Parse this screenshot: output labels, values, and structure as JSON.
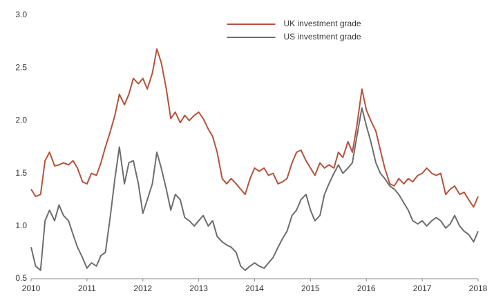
{
  "chart_data": {
    "type": "line",
    "x": [
      2010.0,
      2010.08,
      2010.17,
      2010.25,
      2010.33,
      2010.42,
      2010.5,
      2010.58,
      2010.67,
      2010.75,
      2010.83,
      2010.92,
      2011.0,
      2011.08,
      2011.17,
      2011.25,
      2011.33,
      2011.42,
      2011.5,
      2011.58,
      2011.67,
      2011.75,
      2011.83,
      2011.92,
      2012.0,
      2012.08,
      2012.17,
      2012.25,
      2012.33,
      2012.42,
      2012.5,
      2012.58,
      2012.67,
      2012.75,
      2012.83,
      2012.92,
      2013.0,
      2013.08,
      2013.17,
      2013.25,
      2013.33,
      2013.42,
      2013.5,
      2013.58,
      2013.67,
      2013.75,
      2013.83,
      2013.92,
      2014.0,
      2014.08,
      2014.17,
      2014.25,
      2014.33,
      2014.42,
      2014.5,
      2014.58,
      2014.67,
      2014.75,
      2014.83,
      2014.92,
      2015.0,
      2015.08,
      2015.17,
      2015.25,
      2015.33,
      2015.42,
      2015.5,
      2015.58,
      2015.67,
      2015.75,
      2015.83,
      2015.92,
      2016.0,
      2016.08,
      2016.17,
      2016.25,
      2016.33,
      2016.42,
      2016.5,
      2016.58,
      2016.67,
      2016.75,
      2016.83,
      2016.92,
      2017.0,
      2017.08,
      2017.17,
      2017.25,
      2017.33,
      2017.42,
      2017.5,
      2017.58,
      2017.67,
      2017.75,
      2017.83,
      2017.92,
      2018.0
    ],
    "series": [
      {
        "name": "UK investment grade",
        "color": "#b5523b",
        "values": [
          1.35,
          1.28,
          1.3,
          1.62,
          1.7,
          1.57,
          1.58,
          1.6,
          1.58,
          1.62,
          1.55,
          1.42,
          1.4,
          1.5,
          1.48,
          1.6,
          1.75,
          1.9,
          2.05,
          2.25,
          2.15,
          2.25,
          2.4,
          2.35,
          2.4,
          2.3,
          2.45,
          2.68,
          2.55,
          2.3,
          2.02,
          2.08,
          1.98,
          2.05,
          2.0,
          2.05,
          2.08,
          2.02,
          1.92,
          1.85,
          1.7,
          1.45,
          1.4,
          1.45,
          1.4,
          1.35,
          1.3,
          1.45,
          1.55,
          1.52,
          1.55,
          1.48,
          1.5,
          1.4,
          1.42,
          1.45,
          1.6,
          1.7,
          1.72,
          1.62,
          1.55,
          1.48,
          1.6,
          1.55,
          1.58,
          1.55,
          1.7,
          1.65,
          1.8,
          1.7,
          1.95,
          2.3,
          2.1,
          2.0,
          1.9,
          1.72,
          1.55,
          1.4,
          1.38,
          1.45,
          1.4,
          1.45,
          1.42,
          1.48,
          1.5,
          1.55,
          1.5,
          1.48,
          1.5,
          1.3,
          1.35,
          1.38,
          1.3,
          1.32,
          1.25,
          1.18,
          1.28
        ]
      },
      {
        "name": "US investment grade",
        "color": "#6d6d6d",
        "values": [
          0.8,
          0.62,
          0.58,
          1.05,
          1.15,
          1.05,
          1.2,
          1.1,
          1.05,
          0.92,
          0.8,
          0.7,
          0.6,
          0.65,
          0.62,
          0.72,
          0.75,
          1.1,
          1.45,
          1.75,
          1.4,
          1.6,
          1.62,
          1.4,
          1.12,
          1.25,
          1.4,
          1.7,
          1.55,
          1.35,
          1.15,
          1.3,
          1.25,
          1.08,
          1.05,
          1.0,
          1.05,
          1.1,
          1.0,
          1.05,
          0.9,
          0.85,
          0.82,
          0.8,
          0.75,
          0.62,
          0.58,
          0.62,
          0.65,
          0.62,
          0.6,
          0.65,
          0.7,
          0.8,
          0.88,
          0.95,
          1.1,
          1.15,
          1.25,
          1.3,
          1.15,
          1.05,
          1.1,
          1.3,
          1.4,
          1.5,
          1.58,
          1.5,
          1.55,
          1.6,
          1.85,
          2.12,
          1.95,
          1.8,
          1.6,
          1.5,
          1.45,
          1.38,
          1.35,
          1.3,
          1.22,
          1.15,
          1.05,
          1.02,
          1.05,
          1.0,
          1.05,
          1.08,
          1.05,
          0.98,
          1.02,
          1.1,
          1.0,
          0.95,
          0.92,
          0.85,
          0.95
        ]
      }
    ],
    "xlim": [
      2010,
      2018
    ],
    "xticks": [
      2010,
      2011,
      2012,
      2013,
      2014,
      2015,
      2016,
      2017,
      2018
    ],
    "ylim": [
      0.5,
      3.0
    ],
    "yticks": [
      0.5,
      {
        "value": 1,
        "label": "1.0"
      },
      1.5,
      {
        "value": 2,
        "label": "2.0"
      },
      2.5,
      {
        "value": 3,
        "label": "3.0"
      }
    ],
    "legend": "top"
  }
}
